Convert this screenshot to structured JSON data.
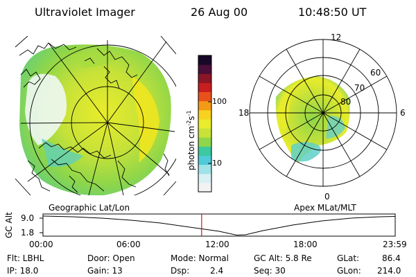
{
  "header": {
    "instrument": "Ultraviolet Imager",
    "date": "26 Aug 00",
    "time": "10:48:50 UT"
  },
  "left_panel": {
    "caption": "Geographic Lat/Lon"
  },
  "right_panel": {
    "caption": "Apex MLat/MLT",
    "mlt_labels": [
      "12",
      "18",
      "6",
      "0"
    ],
    "lat_labels": [
      "60",
      "70",
      "80"
    ]
  },
  "colorbar": {
    "unit_label": "photon cm",
    "unit_sup1": "-2",
    "unit_mid": "s",
    "unit_sup2": "-1",
    "ticks": [
      "100",
      "10"
    ],
    "colors": [
      "#f2f2f2",
      "#d8f0f4",
      "#9fe2e8",
      "#4fcad8",
      "#3cc8a0",
      "#8ed64a",
      "#c8e238",
      "#e8ec2a",
      "#f7d21e",
      "#f39a14",
      "#e8521a",
      "#c81e1e",
      "#8a1626",
      "#4a0e38",
      "#180828"
    ]
  },
  "timeline": {
    "axis_label": "GC Alt",
    "y_ticks": [
      "9.0",
      "1.8"
    ],
    "x_ticks": [
      "00:00",
      "06:00",
      "12:00",
      "18:00",
      "23:59"
    ],
    "current_hour": 10.81
  },
  "info": {
    "flt": "Flt: LBHL",
    "ip": "IP: 18.0",
    "door": "Door: Open",
    "gain": "Gain: 13",
    "mode": "Mode: Normal",
    "dsp_label": "Dsp:",
    "dsp_value": "2.4",
    "gcalt": "GC Alt: 5.8 Re",
    "seq": "Seq: 30",
    "glat_label": "GLat:",
    "glat_value": "86.4",
    "glon_label": "GLon:",
    "glon_value": "214.0"
  }
}
